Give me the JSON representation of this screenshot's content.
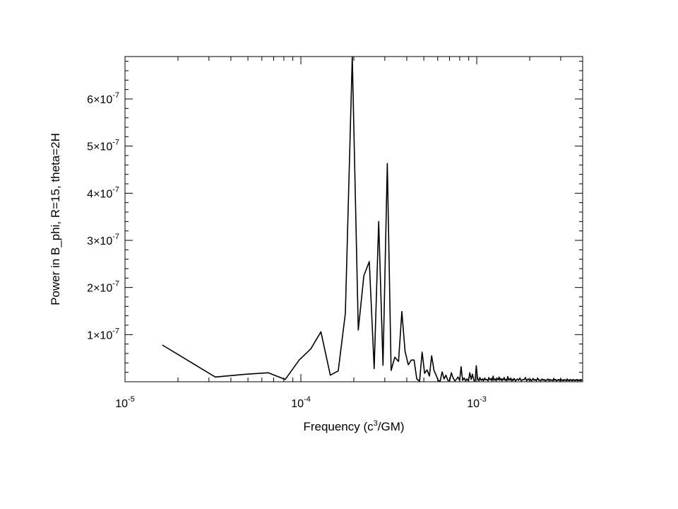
{
  "chart_data": {
    "type": "line",
    "xlabel_base": "Frequency (c",
    "xlabel_sup": "3",
    "xlabel_tail": "/GM)",
    "ylabel": "Power in B_phi, R=15, theta=2H",
    "x_scale": "log",
    "y_scale": "linear",
    "xlim": [
      1e-05,
      0.004
    ],
    "ylim": [
      0,
      6.9e-07
    ],
    "grid": false,
    "legend": "none",
    "line_color": "#000000",
    "x_ticks": [
      {
        "value": 1e-05,
        "base": "10",
        "exp": "-5"
      },
      {
        "value": 0.0001,
        "base": "10",
        "exp": "-4"
      },
      {
        "value": 0.001,
        "base": "10",
        "exp": "-3"
      }
    ],
    "y_ticks": [
      {
        "value": 1e-07,
        "mant": "1×10",
        "exp": "-7"
      },
      {
        "value": 2e-07,
        "mant": "2×10",
        "exp": "-7"
      },
      {
        "value": 3e-07,
        "mant": "3×10",
        "exp": "-7"
      },
      {
        "value": 4e-07,
        "mant": "4×10",
        "exp": "-7"
      },
      {
        "value": 5e-07,
        "mant": "5×10",
        "exp": "-7"
      },
      {
        "value": 6e-07,
        "mant": "6×10",
        "exp": "-7"
      }
    ],
    "series": [
      {
        "x": [
          1.63e-05,
          3.26e-05,
          4.89e-05,
          6.52e-05,
          8.15e-05,
          9.78e-05,
          0.000114,
          0.00013,
          0.000147,
          0.000163,
          0.000179,
          0.000196,
          0.000212,
          0.000228,
          0.000245,
          0.000261,
          0.000277,
          0.000293,
          0.00031,
          0.000326,
          0.000342,
          0.000359,
          0.000375,
          0.000391,
          0.000408,
          0.000424,
          0.00044,
          0.000456,
          0.000473,
          0.000489,
          0.000505,
          0.000522,
          0.000538,
          0.000554,
          0.000571,
          0.000587,
          0.000603,
          0.000619,
          0.000636,
          0.000652,
          0.000668,
          0.000685,
          0.000701,
          0.000717,
          0.000734,
          0.00075,
          0.000766,
          0.000782,
          0.000799,
          0.000815,
          0.000831,
          0.000848,
          0.000864,
          0.00088,
          0.000897,
          0.000913,
          0.000929,
          0.000945,
          0.000962,
          0.000978,
          0.000994,
          0.00101,
          0.00103,
          0.00104,
          0.00106,
          0.00108,
          0.00109,
          0.00111,
          0.00112,
          0.00114,
          0.00116,
          0.00117,
          0.00119,
          0.00121,
          0.00122,
          0.00124,
          0.00125,
          0.00127,
          0.00129,
          0.0013,
          0.00132,
          0.00134,
          0.00135,
          0.00137,
          0.00139,
          0.0014,
          0.00142,
          0.00143,
          0.00145,
          0.00147,
          0.00148,
          0.0015,
          0.00152,
          0.00153,
          0.00155,
          0.00156,
          0.00158,
          0.0016,
          0.00161,
          0.00163,
          0.00166,
          0.0017,
          0.00173,
          0.00176,
          0.00179,
          0.00183,
          0.00186,
          0.00189,
          0.00192,
          0.00196,
          0.00199,
          0.00202,
          0.00205,
          0.00209,
          0.00212,
          0.00215,
          0.00218,
          0.00222,
          0.00225,
          0.00228,
          0.00231,
          0.00235,
          0.00238,
          0.00241,
          0.00245,
          0.00248,
          0.00251,
          0.00254,
          0.00258,
          0.00261,
          0.00264,
          0.00267,
          0.00271,
          0.00274,
          0.00277,
          0.0028,
          0.00284,
          0.00287,
          0.0029,
          0.00293,
          0.00297,
          0.003,
          0.00303,
          0.00306,
          0.0031,
          0.00313,
          0.00316,
          0.00319,
          0.00323,
          0.00326,
          0.00329,
          0.00332,
          0.00336,
          0.00339,
          0.00342,
          0.00345,
          0.00349,
          0.00352,
          0.00355,
          0.00358,
          0.00362,
          0.00365,
          0.00368,
          0.00371,
          0.00375,
          0.00378,
          0.00381,
          0.00384,
          0.00388,
          0.00391,
          0.00394,
          0.00397
        ],
        "y": [
          7.8e-08,
          1e-08,
          1.6e-08,
          1.9e-08,
          5e-09,
          4.6e-08,
          7e-08,
          1.06e-07,
          1.4e-08,
          2.3e-08,
          1.45e-07,
          6.9e-07,
          1.1e-07,
          2.25e-07,
          2.55e-07,
          2.8e-08,
          3.4e-07,
          3.5e-08,
          4.63e-07,
          2.4e-08,
          5.2e-08,
          4.3e-08,
          1.49e-07,
          6.5e-08,
          3.6e-08,
          4.6e-08,
          4.6e-08,
          6e-09,
          1e-09,
          6.3e-08,
          1.8e-08,
          2.5e-08,
          1.2e-08,
          5.5e-08,
          2.4e-08,
          1.4e-08,
          3e-09,
          1e-09,
          2.1e-08,
          6e-09,
          1.4e-08,
          3e-09,
          2e-09,
          1.9e-08,
          8e-09,
          2e-09,
          5e-09,
          1e-08,
          3e-09,
          3.2e-08,
          3e-09,
          8e-09,
          2e-09,
          6e-09,
          2e-09,
          1.9e-08,
          5e-09,
          1.6e-08,
          3e-09,
          1e-09,
          3.4e-08,
          7e-09,
          2e-09,
          9e-09,
          3e-09,
          6e-09,
          2e-09,
          8e-09,
          4e-09,
          5e-09,
          2e-09,
          9e-09,
          4e-09,
          7e-09,
          2e-09,
          1.2e-08,
          3e-09,
          6e-09,
          2e-09,
          8e-09,
          4e-09,
          1e-08,
          3e-09,
          7e-09,
          2e-09,
          6e-09,
          4e-09,
          9e-09,
          3e-09,
          5e-09,
          2e-09,
          1.1e-08,
          3e-09,
          6e-09,
          4e-09,
          8e-09,
          2e-09,
          5e-09,
          3e-09,
          7e-09,
          2e-09,
          6e-09,
          3e-09,
          8e-09,
          2e-09,
          5e-09,
          4e-09,
          9e-09,
          2e-09,
          6e-09,
          3e-09,
          5e-09,
          2e-09,
          7e-09,
          3e-09,
          5e-09,
          2e-09,
          8e-09,
          3e-09,
          4e-09,
          2e-09,
          6e-09,
          3e-09,
          5e-09,
          2e-09,
          4e-09,
          3e-09,
          6e-09,
          2e-09,
          5e-09,
          3e-09,
          4e-09,
          2e-09,
          7e-09,
          3e-09,
          5e-09,
          2e-09,
          4e-09,
          3e-09,
          5e-09,
          2e-09,
          6e-09,
          3e-09,
          4e-09,
          2e-09,
          5e-09,
          3e-09,
          4e-09,
          2e-09,
          6e-09,
          3e-09,
          4e-09,
          2e-09,
          5e-09,
          3e-09,
          4e-09,
          2e-09,
          5e-09,
          3e-09,
          4e-09,
          2e-09,
          4e-09,
          3e-09,
          5e-09,
          2e-09,
          4e-09,
          3e-09,
          4e-09,
          2e-09,
          5e-09,
          3e-09,
          4e-09
        ]
      }
    ]
  }
}
